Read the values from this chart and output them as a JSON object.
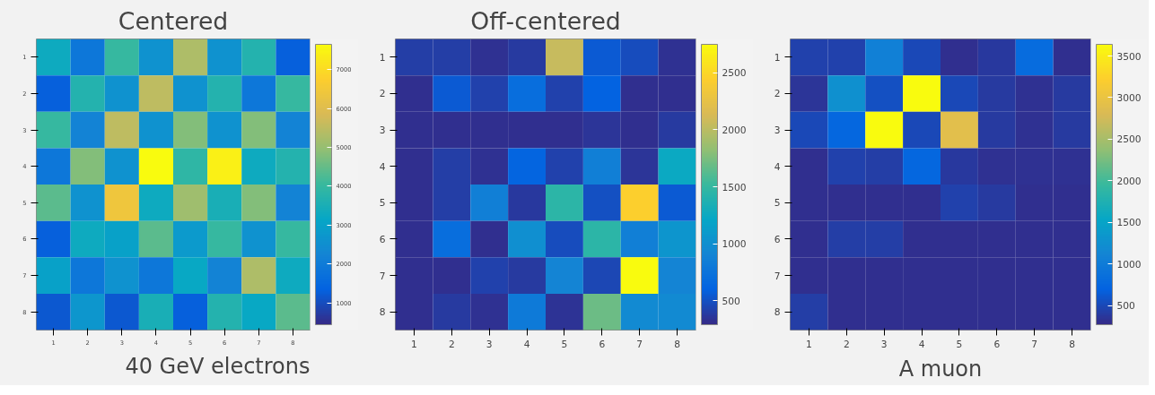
{
  "chart_data": [
    {
      "type": "heatmap",
      "title": "Centered",
      "annotations": [
        "40 GeV electrons"
      ],
      "categories": [
        "1",
        "2",
        "3",
        "4",
        "5",
        "6",
        "7",
        "8"
      ],
      "y_categories": [
        "1",
        "2",
        "3",
        "4",
        "5",
        "6",
        "7",
        "8"
      ],
      "clim": [
        440,
        7650
      ],
      "cticks": [
        1000,
        2000,
        3000,
        4000,
        5000,
        6000,
        7000
      ],
      "cells": [
        [
          3300,
          1900,
          4000,
          2600,
          5300,
          2600,
          3700,
          1300
        ],
        [
          1300,
          3700,
          2600,
          5500,
          2600,
          3700,
          1900,
          4000
        ],
        [
          4000,
          2200,
          5500,
          2600,
          4800,
          2600,
          4800,
          2200
        ],
        [
          1900,
          4800,
          2600,
          7650,
          3900,
          7400,
          3300,
          3700
        ],
        [
          4400,
          2600,
          6400,
          3300,
          5100,
          3500,
          4800,
          2200
        ],
        [
          1300,
          3300,
          3000,
          4400,
          2800,
          4000,
          2600,
          4000
        ],
        [
          3000,
          1900,
          2600,
          1900,
          3200,
          2200,
          5300,
          3300
        ],
        [
          1200,
          2700,
          1200,
          3500,
          1300,
          3700,
          3200,
          4400
        ]
      ]
    },
    {
      "type": "heatmap",
      "title": "Off-centered",
      "categories": [
        "1",
        "2",
        "3",
        "4",
        "5",
        "6",
        "7",
        "8"
      ],
      "y_categories": [
        "1",
        "2",
        "3",
        "4",
        "5",
        "6",
        "7",
        "8"
      ],
      "clim": [
        290,
        2750
      ],
      "cticks": [
        500,
        1000,
        1500,
        2000,
        2500
      ],
      "cells": [
        [
          400,
          400,
          330,
          380,
          2050,
          550,
          480,
          330
        ],
        [
          320,
          550,
          420,
          700,
          420,
          600,
          320,
          320
        ],
        [
          320,
          320,
          320,
          320,
          320,
          350,
          320,
          380
        ],
        [
          320,
          400,
          330,
          620,
          420,
          850,
          350,
          1250
        ],
        [
          320,
          400,
          850,
          370,
          1450,
          500,
          2450,
          550
        ],
        [
          320,
          700,
          320,
          1000,
          480,
          1450,
          850,
          1050
        ],
        [
          320,
          320,
          420,
          380,
          900,
          450,
          2750,
          900
        ],
        [
          320,
          380,
          330,
          800,
          340,
          1700,
          950,
          950
        ]
      ]
    },
    {
      "type": "heatmap",
      "annotations": [
        "A muon"
      ],
      "categories": [
        "1",
        "2",
        "3",
        "4",
        "5",
        "6",
        "7",
        "8"
      ],
      "y_categories": [
        "1",
        "2",
        "3",
        "4",
        "5",
        "6",
        "7",
        "8"
      ],
      "clim": [
        270,
        3640
      ],
      "cticks": [
        500,
        1000,
        1500,
        2000,
        2500,
        3000,
        3500
      ],
      "cells": [
        [
          450,
          450,
          1050,
          500,
          320,
          380,
          800,
          320
        ],
        [
          350,
          1250,
          550,
          3640,
          500,
          400,
          330,
          400
        ],
        [
          500,
          750,
          3640,
          500,
          2900,
          400,
          330,
          400
        ],
        [
          320,
          450,
          420,
          750,
          380,
          330,
          330,
          330
        ],
        [
          320,
          320,
          320,
          320,
          450,
          400,
          320,
          320
        ],
        [
          320,
          420,
          420,
          320,
          320,
          320,
          320,
          320
        ],
        [
          320,
          320,
          320,
          320,
          320,
          320,
          320,
          320
        ],
        [
          420,
          320,
          320,
          320,
          320,
          320,
          320,
          320
        ]
      ]
    }
  ]
}
